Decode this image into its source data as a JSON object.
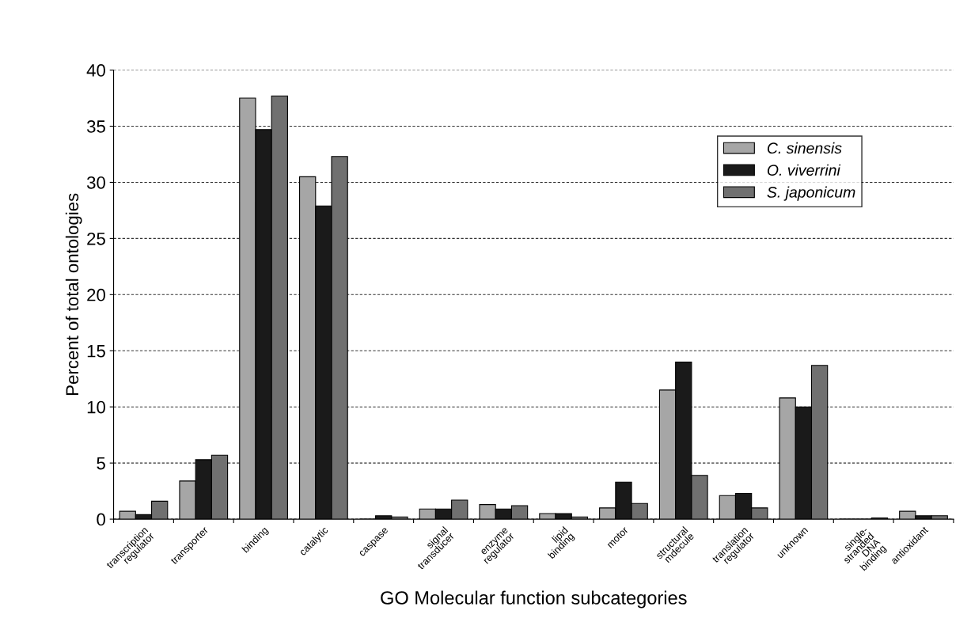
{
  "chart_data": {
    "type": "bar",
    "xlabel": "GO Molecular function subcategories",
    "ylabel": "Percent of total ontologies",
    "categories": [
      "transcription\nregulator",
      "transporter",
      "binding",
      "catalytic",
      "caspase",
      "signal\ntransducer",
      "enzyme\nregulator",
      "lipid\nbinding",
      "motor",
      "structural\nmdecule",
      "translation\nregulator",
      "unknown",
      "single-\nstranded\nDNA\nbinding",
      "antioxidant"
    ],
    "series": [
      {
        "name": "C. sinensis",
        "color": "#a6a6a6",
        "values": [
          0.7,
          3.4,
          37.5,
          30.5,
          0,
          0.9,
          1.3,
          0.5,
          1.0,
          11.5,
          2.1,
          10.8,
          0,
          0.7
        ]
      },
      {
        "name": "O. viverrini",
        "color": "#1a1a1a",
        "values": [
          0.4,
          5.3,
          34.7,
          27.9,
          0.3,
          0.9,
          0.9,
          0.5,
          3.3,
          14.0,
          2.3,
          10.0,
          0,
          0.3
        ]
      },
      {
        "name": "S. japonicum",
        "color": "#707070",
        "values": [
          1.6,
          5.7,
          37.7,
          32.3,
          0.2,
          1.7,
          1.2,
          0.2,
          1.4,
          3.9,
          1.0,
          13.7,
          0.1,
          0.3
        ]
      }
    ],
    "ylim": [
      0,
      40
    ],
    "yticks": [
      0,
      5,
      10,
      15,
      20,
      25,
      30,
      35,
      40
    ],
    "grid": "y",
    "legend": "top right"
  }
}
